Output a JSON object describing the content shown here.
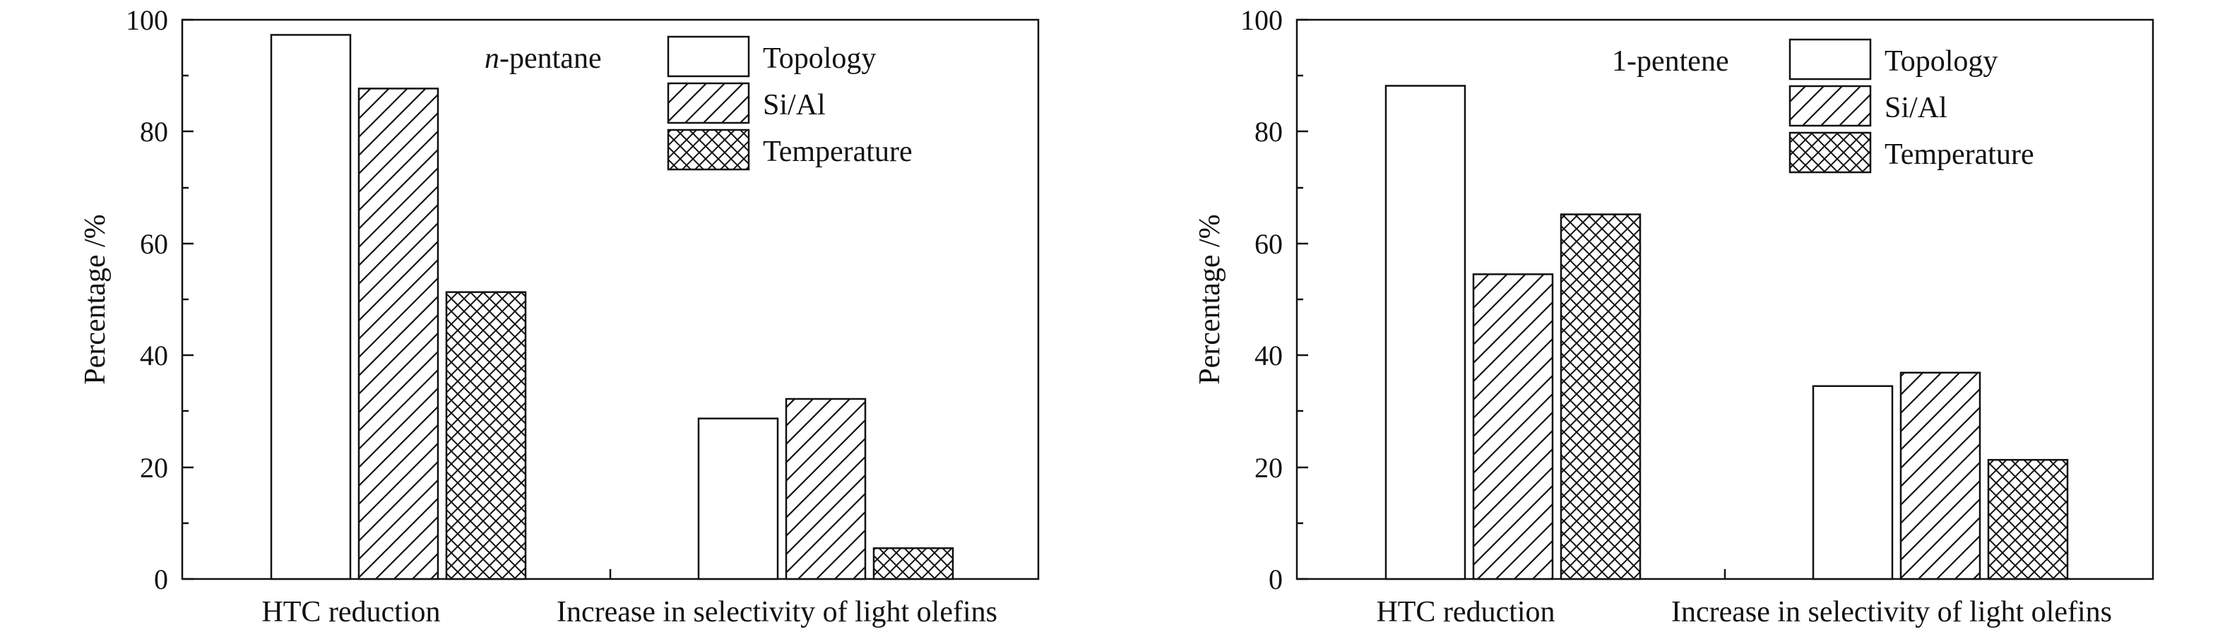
{
  "chart_data": [
    {
      "type": "bar",
      "annotation": {
        "italic": "n",
        "rest": "-pentane"
      },
      "ylabel": "Percentage /%",
      "ylim": [
        0,
        100
      ],
      "yticks": [
        0,
        20,
        40,
        60,
        80,
        100
      ],
      "categories": [
        "HTC reduction",
        "Increase in selectivity of light olefins"
      ],
      "series": [
        {
          "name": "Topology",
          "pattern": "none",
          "values": [
            97.3,
            28.7
          ]
        },
        {
          "name": "Si/Al",
          "pattern": "hatch",
          "values": [
            87.7,
            32.2
          ]
        },
        {
          "name": "Temperature",
          "pattern": "crosshatch",
          "values": [
            51.3,
            5.5
          ]
        }
      ],
      "legend": "top-right",
      "grid": false
    },
    {
      "type": "bar",
      "annotation": {
        "italic": "",
        "rest": "1-pentene"
      },
      "ylabel": "Percentage /%",
      "ylim": [
        0,
        100
      ],
      "yticks": [
        0,
        20,
        40,
        60,
        80,
        100
      ],
      "categories": [
        "HTC reduction",
        "Increase in selectivity of light olefins"
      ],
      "series": [
        {
          "name": "Topology",
          "pattern": "none",
          "values": [
            88.2,
            34.5
          ]
        },
        {
          "name": "Si/Al",
          "pattern": "hatch",
          "values": [
            54.5,
            36.9
          ]
        },
        {
          "name": "Temperature",
          "pattern": "crosshatch",
          "values": [
            65.2,
            21.3
          ]
        }
      ],
      "legend": "top-right",
      "grid": false
    }
  ]
}
